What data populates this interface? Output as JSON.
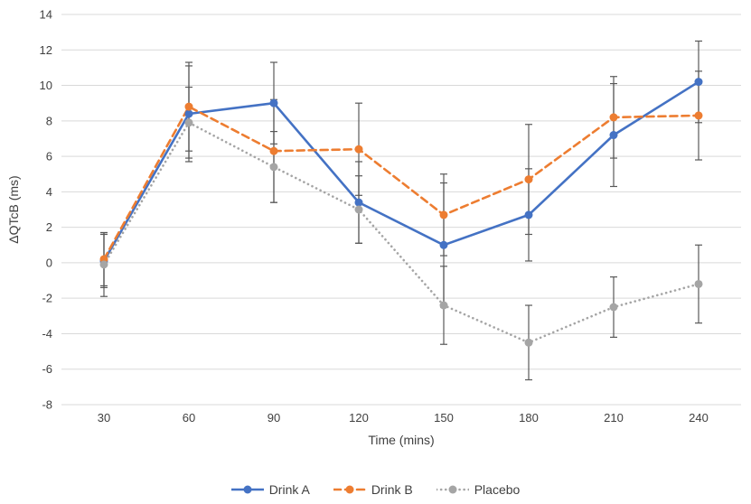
{
  "chart_data": {
    "type": "line",
    "title": "",
    "xlabel": "Time (mins)",
    "ylabel": "ΔQTcB (ms)",
    "x": [
      30,
      60,
      90,
      120,
      150,
      180,
      210,
      240
    ],
    "ylim": [
      -8,
      14
    ],
    "ytick_step": 2,
    "grid": true,
    "legend_position": "bottom",
    "colors": {
      "drink_a": "#4472C4",
      "drink_b": "#ED7D31",
      "placebo": "#A5A5A5",
      "gridline": "#D9D9D9",
      "error_bar": "#595959",
      "axis_text": "#404040"
    },
    "series": [
      {
        "name": "Drink A",
        "color": "#4472C4",
        "style": "solid",
        "values": [
          0.1,
          8.4,
          9.0,
          3.4,
          1.0,
          2.7,
          7.2,
          10.2
        ],
        "errors": [
          1.5,
          2.7,
          2.3,
          2.3,
          3.5,
          2.6,
          2.9,
          2.3
        ]
      },
      {
        "name": "Drink B",
        "color": "#ED7D31",
        "style": "dashed",
        "values": [
          0.2,
          8.8,
          6.3,
          6.4,
          2.7,
          4.7,
          8.2,
          8.3
        ],
        "errors": [
          1.5,
          2.5,
          2.9,
          2.6,
          2.3,
          3.1,
          2.3,
          2.5
        ]
      },
      {
        "name": "Placebo",
        "color": "#A5A5A5",
        "style": "dotted",
        "values": [
          -0.1,
          7.9,
          5.4,
          3.0,
          -2.4,
          -4.5,
          -2.5,
          -1.2
        ],
        "errors": [
          1.8,
          2.0,
          2.0,
          1.9,
          2.2,
          2.1,
          1.7,
          2.2
        ]
      }
    ]
  }
}
